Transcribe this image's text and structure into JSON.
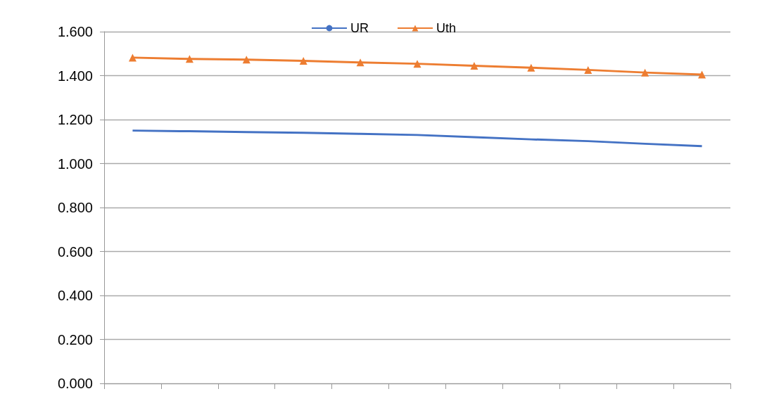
{
  "chart_data": {
    "type": "line",
    "categories": [
      null,
      null,
      null,
      null,
      null,
      null,
      null,
      null,
      null,
      null,
      null
    ],
    "series": [
      {
        "name": "UR",
        "color": "#4472c4",
        "marker": "none",
        "values": [
          1.15,
          1.147,
          1.143,
          1.14,
          1.135,
          1.13,
          1.12,
          1.11,
          1.102,
          1.09,
          1.079
        ]
      },
      {
        "name": "Uth",
        "color": "#ed7d31",
        "marker": "triangle",
        "values": [
          1.482,
          1.476,
          1.473,
          1.467,
          1.46,
          1.454,
          1.445,
          1.436,
          1.426,
          1.414,
          1.405
        ]
      }
    ],
    "ylim": [
      0,
      1.6
    ],
    "yticks": [
      {
        "value": 0,
        "label": "0.000"
      },
      {
        "value": 0.2,
        "label": "0.200"
      },
      {
        "value": 0.4,
        "label": "0.400"
      },
      {
        "value": 0.6,
        "label": "0.600"
      },
      {
        "value": 0.8,
        "label": "0.800"
      },
      {
        "value": 1,
        "label": "1.000"
      },
      {
        "value": 1.2,
        "label": "1.200"
      },
      {
        "value": 1.4,
        "label": "1.400"
      },
      {
        "value": 1.6,
        "label": "1.600"
      }
    ],
    "grid": "y",
    "legend": "top"
  }
}
